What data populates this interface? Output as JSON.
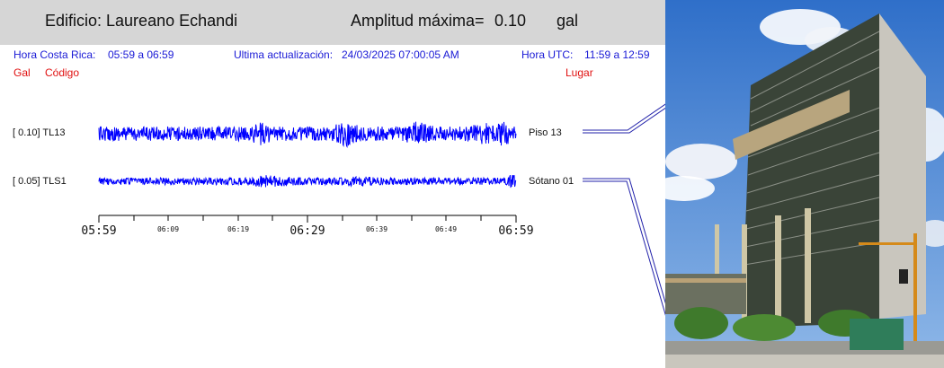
{
  "header": {
    "building_label": "Edificio: Laureano Echandi",
    "amplitude_label": "Amplitud máxima=",
    "amplitude_value": "0.10",
    "amplitude_unit": "gal"
  },
  "info": {
    "local_time_label": "Hora Costa Rica:",
    "local_time_value": "05:59 a 06:59",
    "update_label": "Ultima actualización:",
    "update_value": "24/03/2025 07:00:05 AM",
    "utc_label": "Hora UTC:",
    "utc_value": "11:59 a 12:59"
  },
  "columns": {
    "gal": "Gal",
    "code": "Código",
    "place": "Lugar"
  },
  "channels": [
    {
      "range": "[   0.10] TL13",
      "place": "Piso 13",
      "amplitude_gal": 0.1
    },
    {
      "range": "[   0.05] TLS1",
      "place": "Sótano 01",
      "amplitude_gal": 0.05
    }
  ],
  "time_axis": {
    "major_ticks": [
      "05:59",
      "06:29",
      "06:59"
    ],
    "minor_ticks": [
      "06:09",
      "06:19",
      "06:39",
      "06:49"
    ]
  },
  "colors": {
    "trace": "#0000ff",
    "header_bg": "#d6d6d6",
    "info_text": "#1a1ad6",
    "column_text": "#e01010"
  }
}
